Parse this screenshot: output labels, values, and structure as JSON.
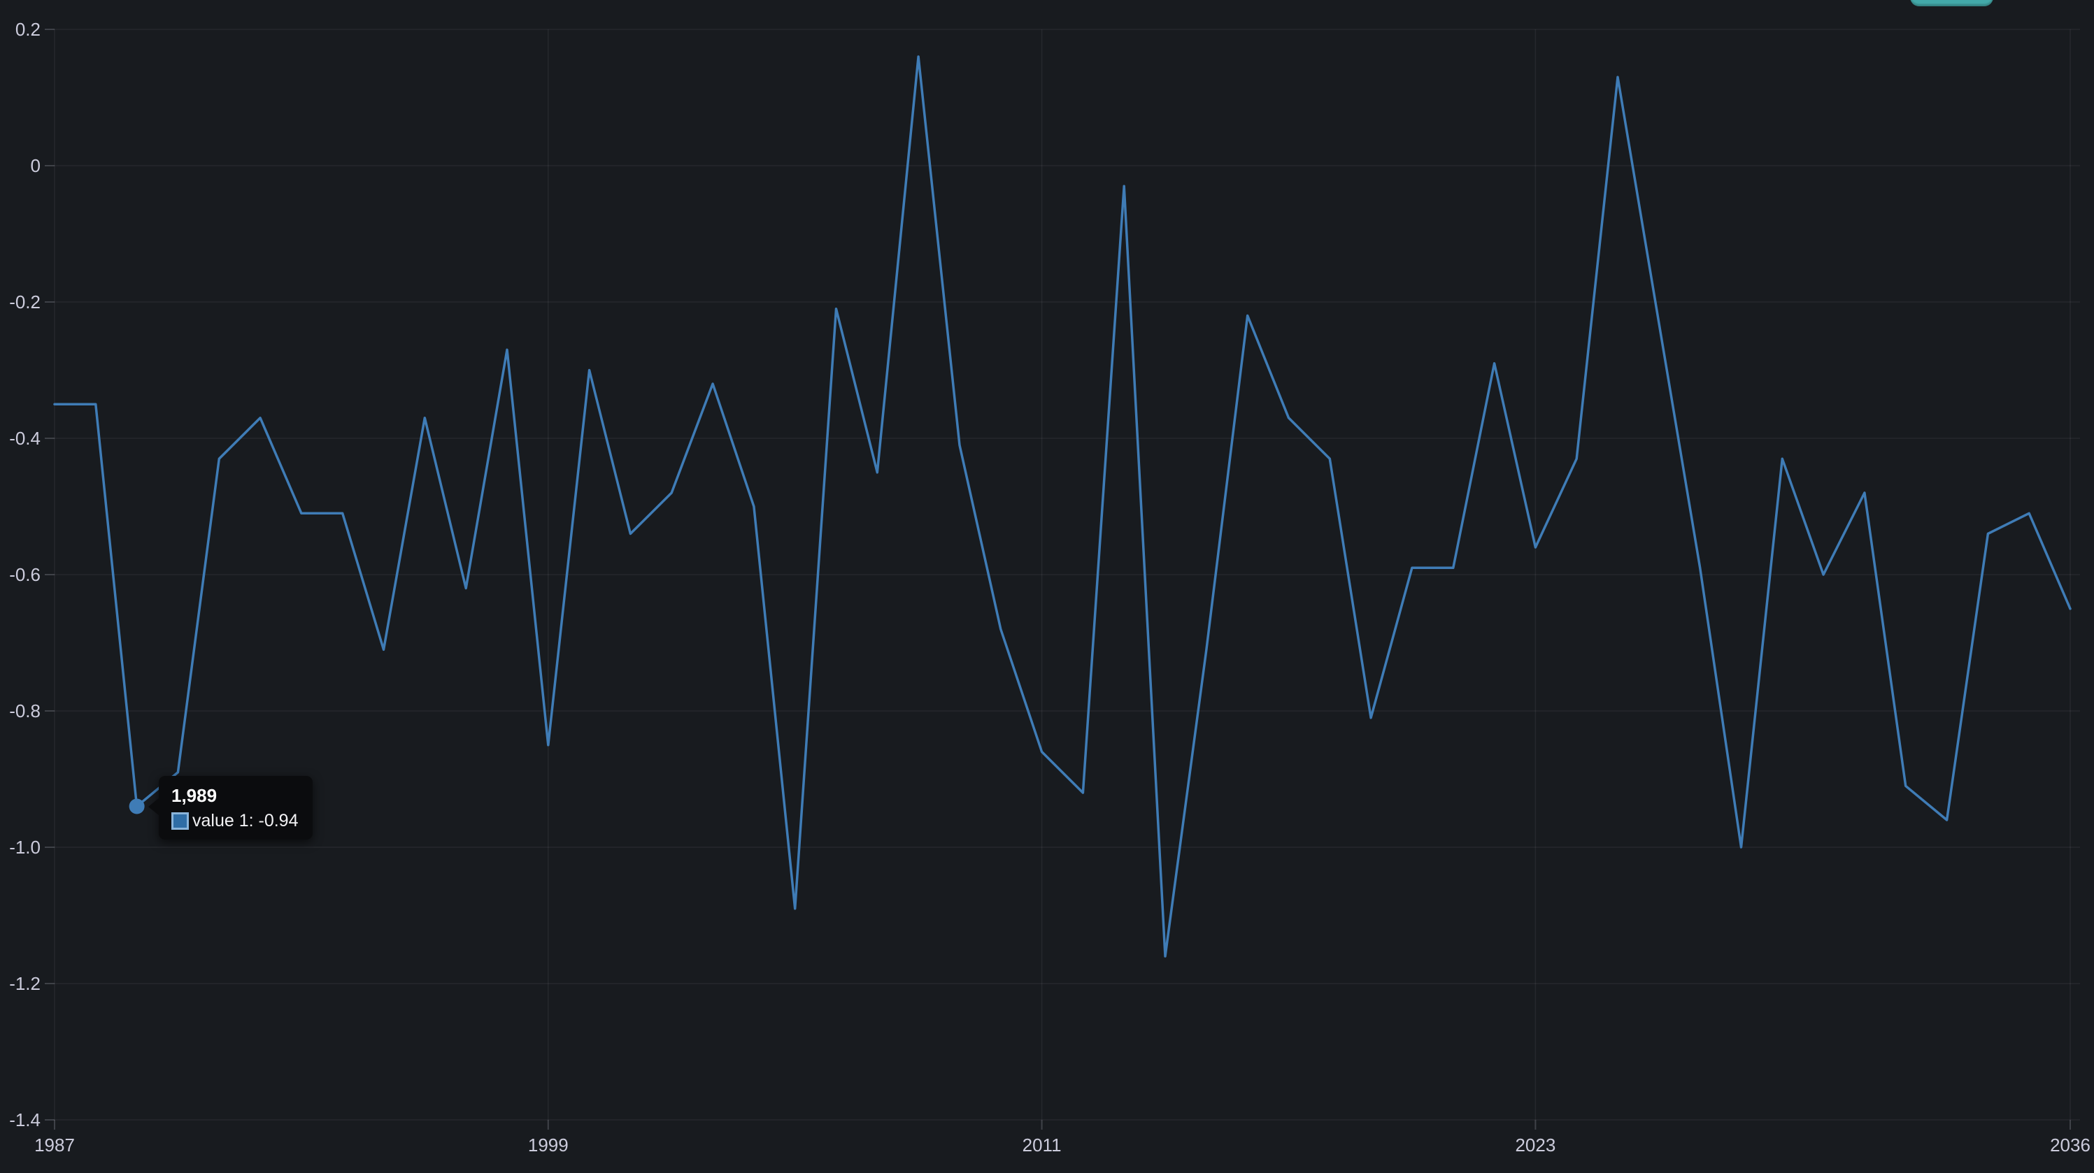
{
  "panel": {
    "background": "#181b1f"
  },
  "top_right_button": {
    "color": "#43a9a9"
  },
  "tooltip": {
    "title": "1,989",
    "series_label": "value 1",
    "series_value": "-0.94",
    "text": "value 1: -0.94",
    "swatch_fill": "#2f6da5",
    "swatch_border": "#8ab4da",
    "anchor_year": 1989,
    "anchor_value": -0.94
  },
  "chart_data": {
    "type": "line",
    "title": "",
    "xlabel": "",
    "ylabel": "",
    "grid": true,
    "legend_position": "none",
    "xlim": [
      1987,
      2036
    ],
    "ylim": [
      -1.4,
      0.2
    ],
    "x_ticks": [
      {
        "label": "1987",
        "year": 1987
      },
      {
        "label": "1999",
        "year": 1999
      },
      {
        "label": "2011",
        "year": 2011
      },
      {
        "label": "2023",
        "year": 2023
      },
      {
        "label": "2036",
        "year": 2036
      }
    ],
    "y_ticks": [
      {
        "label": "0.2",
        "value": 0.2
      },
      {
        "label": "0",
        "value": 0
      },
      {
        "label": "-0.2",
        "value": -0.2
      },
      {
        "label": "-0.4",
        "value": -0.4
      },
      {
        "label": "-0.6",
        "value": -0.6
      },
      {
        "label": "-0.8",
        "value": -0.8
      },
      {
        "label": "-1.0",
        "value": -1.0
      },
      {
        "label": "-1.2",
        "value": -1.2
      },
      {
        "label": "-1.4",
        "value": -1.4
      }
    ],
    "series": [
      {
        "name": "value 1",
        "color": "#3f7cb6",
        "x": [
          1987,
          1988,
          1989,
          1990,
          1991,
          1992,
          1993,
          1994,
          1995,
          1996,
          1997,
          1998,
          1999,
          2000,
          2001,
          2002,
          2003,
          2004,
          2005,
          2006,
          2007,
          2008,
          2009,
          2010,
          2011,
          2012,
          2013,
          2014,
          2015,
          2016,
          2017,
          2018,
          2019,
          2020,
          2021,
          2022,
          2023,
          2024,
          2025,
          2026,
          2027,
          2028,
          2029,
          2030,
          2031,
          2032,
          2033,
          2034,
          2035,
          2036
        ],
        "values": [
          -0.35,
          -0.35,
          -0.94,
          -0.89,
          -0.43,
          -0.37,
          -0.51,
          -0.51,
          -0.71,
          -0.37,
          -0.62,
          -0.27,
          -0.85,
          -0.3,
          -0.54,
          -0.48,
          -0.32,
          -0.5,
          -1.09,
          -0.21,
          -0.45,
          0.16,
          -0.41,
          -0.68,
          -0.86,
          -0.92,
          -0.03,
          -1.16,
          -0.71,
          -0.22,
          -0.37,
          -0.43,
          -0.81,
          -0.59,
          -0.59,
          -0.29,
          -0.56,
          -0.43,
          0.13,
          -0.23,
          -0.59,
          -1.0,
          -0.43,
          -0.6,
          -0.48,
          -0.91,
          -0.96,
          -0.54,
          -0.51,
          -0.65
        ]
      }
    ],
    "highlighted_point": {
      "series": "value 1",
      "x": 1989,
      "value": -0.94
    }
  }
}
